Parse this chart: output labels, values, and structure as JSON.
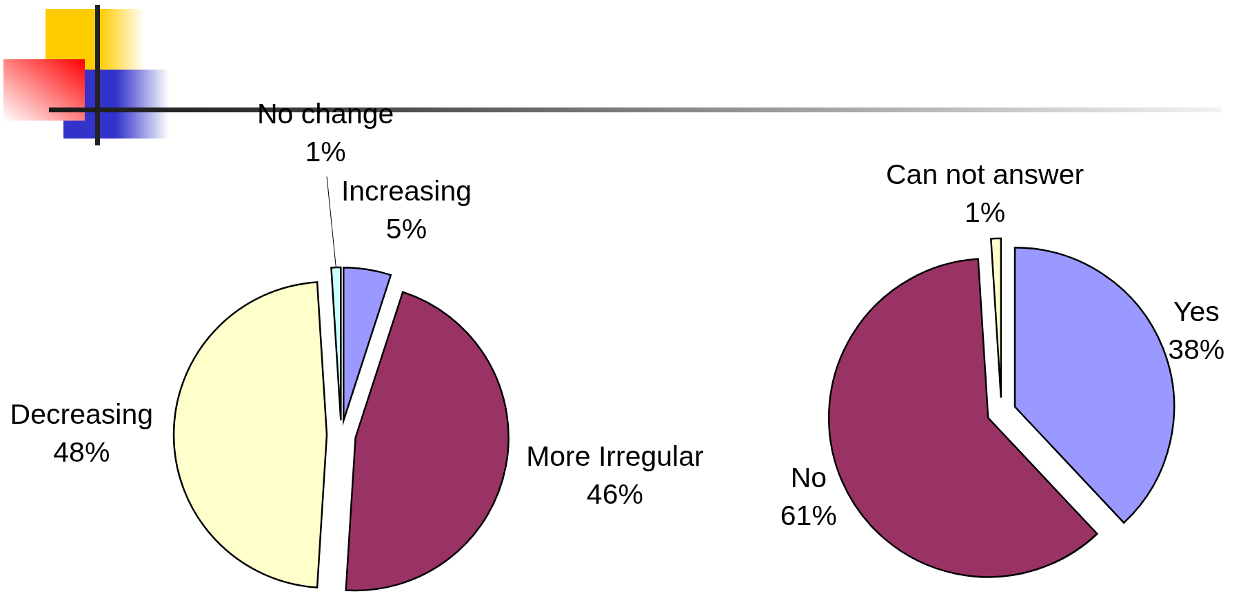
{
  "chart_data": [
    {
      "type": "pie",
      "categories": [
        "Increasing",
        "More Irregular",
        "Decreasing",
        "No change"
      ],
      "values": [
        5,
        46,
        48,
        1
      ],
      "colors": [
        "#9999ff",
        "#993366",
        "#ffffcc",
        "#ccffff"
      ],
      "value_labels": [
        "5%",
        "46%",
        "48%",
        "1%"
      ]
    },
    {
      "type": "pie",
      "categories": [
        "Yes",
        "No",
        "Can not answer"
      ],
      "values": [
        38,
        61,
        1
      ],
      "colors": [
        "#9999ff",
        "#993366",
        "#ffffcc"
      ],
      "value_labels": [
        "38%",
        "61%",
        "1%"
      ]
    }
  ]
}
